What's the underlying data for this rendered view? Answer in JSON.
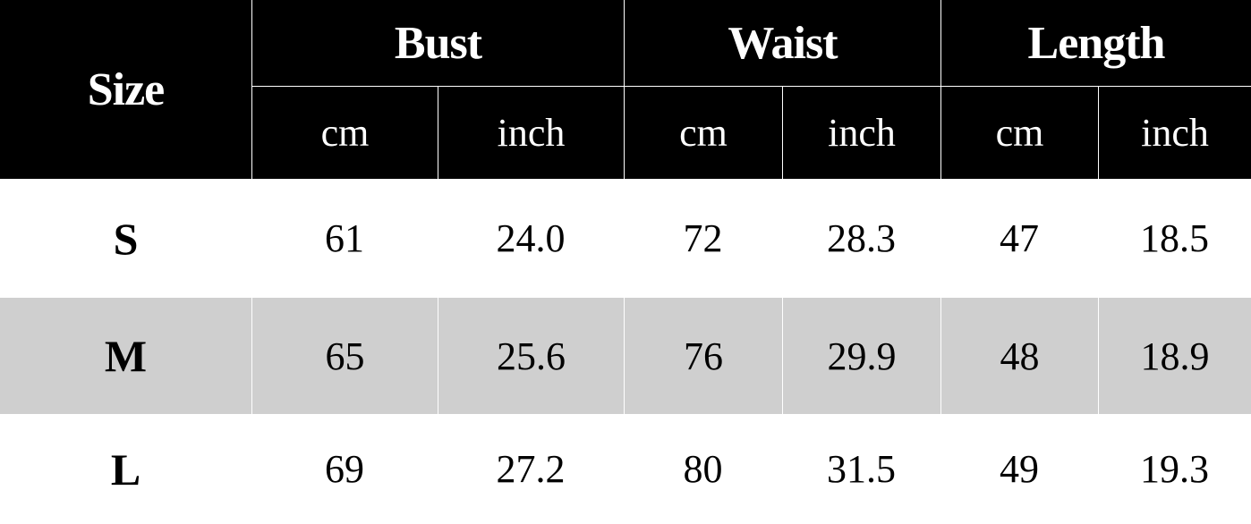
{
  "header": {
    "size_label": "Size",
    "groups": [
      "Bust",
      "Waist",
      "Length"
    ],
    "units": [
      "cm",
      "inch",
      "cm",
      "inch",
      "cm",
      "inch"
    ]
  },
  "rows": [
    {
      "size": "S",
      "values": [
        "61",
        "24.0",
        "72",
        "28.3",
        "47",
        "18.5"
      ]
    },
    {
      "size": "M",
      "values": [
        "65",
        "25.6",
        "76",
        "29.9",
        "48",
        "18.9"
      ]
    },
    {
      "size": "L",
      "values": [
        "69",
        "27.2",
        "80",
        "31.5",
        "49",
        "19.3"
      ]
    }
  ],
  "colors": {
    "header_bg": "#000000",
    "header_text": "#ffffff",
    "stripe_bg": "#cfcfcf"
  }
}
